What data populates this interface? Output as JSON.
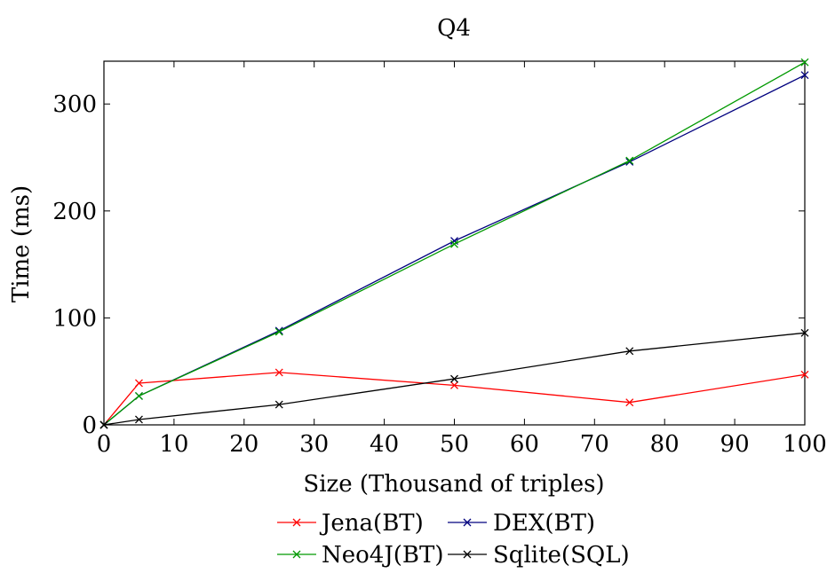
{
  "chart_data": {
    "type": "line",
    "title": "Q4",
    "xlabel": "Size (Thousand of triples)",
    "ylabel": "Time (ms)",
    "xlim": [
      0,
      100
    ],
    "ylim": [
      0,
      340
    ],
    "xticks": [
      0,
      10,
      20,
      30,
      40,
      50,
      60,
      70,
      80,
      90,
      100
    ],
    "yticks": [
      0,
      100,
      200,
      300
    ],
    "grid": false,
    "legend_position": "bottom",
    "series": [
      {
        "name": "Jena(BT)",
        "color": "#ff0000",
        "x": [
          0,
          5,
          25,
          50,
          75,
          100
        ],
        "y": [
          0,
          39,
          49,
          37,
          21,
          47
        ]
      },
      {
        "name": "DEX(BT)",
        "color": "#00007f",
        "x": [
          0,
          5,
          25,
          50,
          75,
          100
        ],
        "y": [
          0,
          27,
          88,
          172,
          246,
          327
        ]
      },
      {
        "name": "Neo4J(BT)",
        "color": "#009900",
        "x": [
          0,
          5,
          25,
          50,
          75,
          100
        ],
        "y": [
          0,
          27,
          87,
          169,
          247,
          339
        ]
      },
      {
        "name": "Sqlite(SQL)",
        "color": "#000000",
        "x": [
          0,
          5,
          25,
          50,
          75,
          100
        ],
        "y": [
          0,
          5,
          19,
          43,
          69,
          86
        ]
      }
    ]
  }
}
